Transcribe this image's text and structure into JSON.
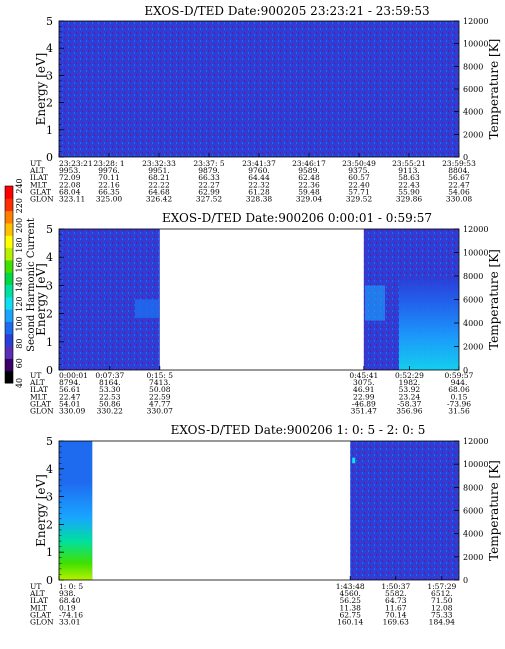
{
  "colorbar": {
    "label": "Second Harmonic Current",
    "ticks": [
      "40",
      "60",
      "80",
      "100",
      "120",
      "140",
      "160",
      "180",
      "200",
      "220",
      "240"
    ],
    "colors": [
      "#000000",
      "#3a006a",
      "#5a2fb8",
      "#2a3fd8",
      "#1f6bf0",
      "#19a5ff",
      "#10dff0",
      "#00e0a0",
      "#00d848",
      "#40e000",
      "#b8f000",
      "#ffff00",
      "#ffc000",
      "#ff8000",
      "#ff3000",
      "#ff0000"
    ]
  },
  "panels": [
    {
      "title": "EXOS-D/TED   Date:900205  23:23:21 - 23:59:53",
      "ylabel": "Energy [eV]",
      "y2label": "Temperature [K]",
      "yticks": [
        "0",
        "1",
        "2",
        "3",
        "4",
        "5"
      ],
      "y2ticks": [
        "0",
        "2000",
        "4000",
        "6000",
        "8000",
        "10000",
        "12000"
      ],
      "row_labels": [
        "UT",
        "ALT",
        "ILAT",
        "MLT",
        "GLAT",
        "GLON"
      ],
      "columns": [
        [
          "23:23:21",
          "9953.",
          "72.09",
          "22.08",
          "68.04",
          "323.11"
        ],
        [
          "23:28: 1",
          "9976.",
          "70.11",
          "22.16",
          "66.35",
          "325.00"
        ],
        [
          "23:32:33",
          "9951.",
          "68.21",
          "22.22",
          "64.68",
          "326.42"
        ],
        [
          "23:37: 5",
          "9879.",
          "66.33",
          "22.27",
          "62.99",
          "327.52"
        ],
        [
          "23:41:37",
          "9760.",
          "64.44",
          "22.32",
          "61.28",
          "328.38"
        ],
        [
          "23:46:17",
          "9589.",
          "62.48",
          "22.36",
          "59.48",
          "329.04"
        ],
        [
          "23:50:49",
          "9375.",
          "60.57",
          "22.40",
          "57.71",
          "329.52"
        ],
        [
          "23:55:21",
          "9113.",
          "58.63",
          "22.43",
          "55.90",
          "329.86"
        ],
        [
          "23:59:53",
          "8804.",
          "56.67",
          "22.47",
          "54.06",
          "330.08"
        ]
      ],
      "column_fractions": [
        0,
        0.125,
        0.25,
        0.375,
        0.5,
        0.625,
        0.75,
        0.875,
        1
      ],
      "data_segments": [
        [
          0,
          1
        ]
      ],
      "note": "full coverage"
    },
    {
      "title": "EXOS-D/TED   Date:900206  0:00:01 - 0:59:57",
      "ylabel": "Energy [eV]",
      "y2label": "Temperature [K]",
      "yticks": [
        "0",
        "1",
        "2",
        "3",
        "4",
        "5"
      ],
      "y2ticks": [
        "0",
        "2000",
        "4000",
        "6000",
        "8000",
        "10000",
        "12000"
      ],
      "row_labels": [
        "UT",
        "ALT",
        "ILAT",
        "MLT",
        "GLAT",
        "GLON"
      ],
      "columns": [
        [
          "0:00:01",
          "8794.",
          "56.61",
          "22.47",
          "54.01",
          "330.09"
        ],
        [
          "0:07:37",
          "8164.",
          "53.30",
          "22.53",
          "50.86",
          "330.22"
        ],
        [
          "0:15: 5",
          "7413.",
          "50.08",
          "22.59",
          "47.77",
          "330.07"
        ],
        [
          "0:45:41",
          "3075.",
          "46.91",
          "22.99",
          "-46.89",
          "351.47"
        ],
        [
          "0:52:29",
          "1982.",
          "53.92",
          "23.24",
          "-58.37",
          "356.96"
        ],
        [
          "0:59:57",
          "944.",
          "68.06",
          "0.15",
          "-73.96",
          "31.56"
        ]
      ],
      "column_fractions": [
        0,
        0.127,
        0.252,
        0.762,
        0.876,
        1
      ],
      "data_segments": [
        [
          0,
          0.252
        ],
        [
          0.762,
          1
        ]
      ]
    },
    {
      "title": "EXOS-D/TED   Date:900206  1: 0: 5 - 2: 0: 5",
      "ylabel": "Energy [eV]",
      "y2label": "Temperature [K]",
      "yticks": [
        "0",
        "1",
        "2",
        "3",
        "4",
        "5"
      ],
      "y2ticks": [
        "0",
        "2000",
        "4000",
        "6000",
        "8000",
        "10000",
        "12000"
      ],
      "row_labels": [
        "UT",
        "ALT",
        "ILAT",
        "MLT",
        "GLAT",
        "GLON"
      ],
      "columns": [
        [
          "1: 0: 5",
          "938.",
          "68.40",
          "0.19",
          "-74.16",
          "33.01"
        ],
        [
          "1:43:48",
          "4560.",
          "56.25",
          "11.38",
          "62.75",
          "160.14"
        ],
        [
          "1:50:37",
          "5582.",
          "64.73",
          "11.67",
          "70.14",
          "169.63"
        ],
        [
          "1:57:29",
          "6512.",
          "71.50",
          "12.08",
          "75.33",
          "184.94"
        ]
      ],
      "column_fractions": [
        0,
        0.728,
        0.842,
        0.957
      ],
      "data_segments": [
        [
          0,
          0.083
        ],
        [
          0.728,
          1
        ]
      ]
    }
  ]
}
